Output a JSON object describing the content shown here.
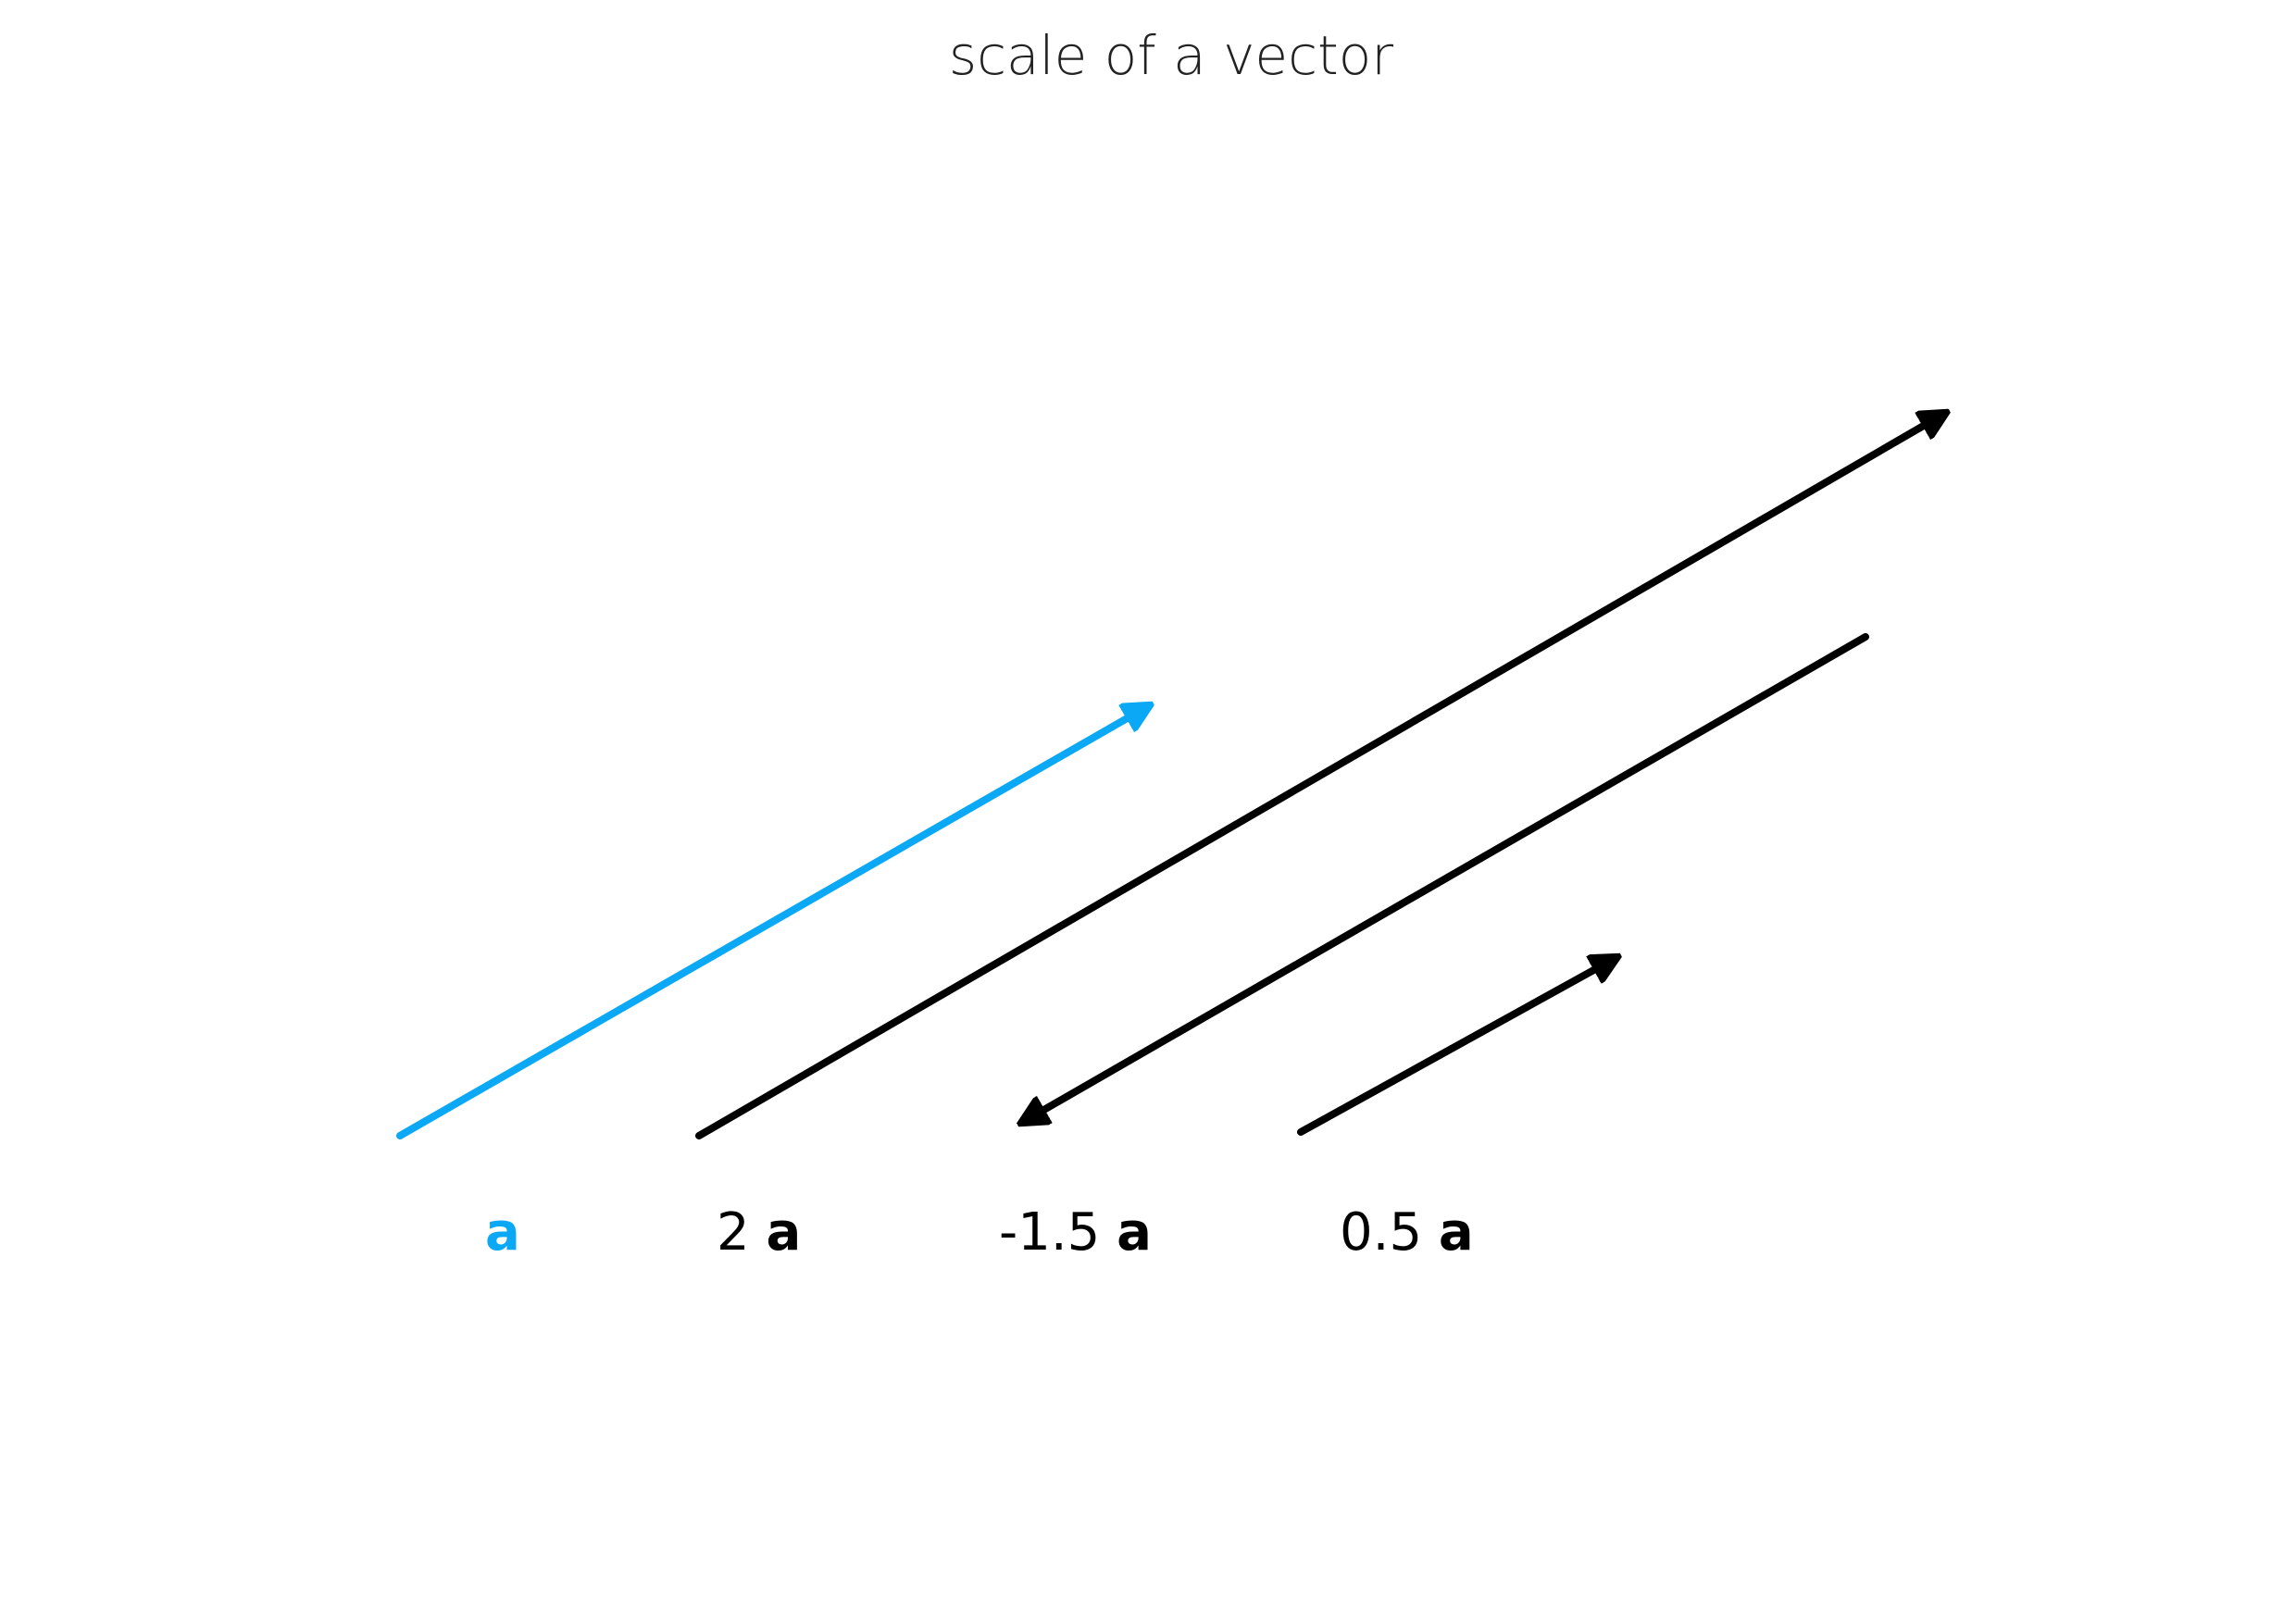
{
  "title": "scale of a vector",
  "colors": {
    "base_vector": "#0aa8f5",
    "scaled_vector": "#000000",
    "background": "#ffffff"
  },
  "vectors": [
    {
      "id": "a",
      "scalar_label": "",
      "vector_label": "a",
      "scalar": 1,
      "color": "#0aa8f5"
    },
    {
      "id": "2a",
      "scalar_label": "2 ",
      "vector_label": "a",
      "scalar": 2,
      "color": "#000000"
    },
    {
      "id": "-1.5a",
      "scalar_label": "-1.5 ",
      "vector_label": "a",
      "scalar": -1.5,
      "color": "#000000"
    },
    {
      "id": "0.5a",
      "scalar_label": "0.5 ",
      "vector_label": "a",
      "scalar": 0.5,
      "color": "#000000"
    }
  ]
}
